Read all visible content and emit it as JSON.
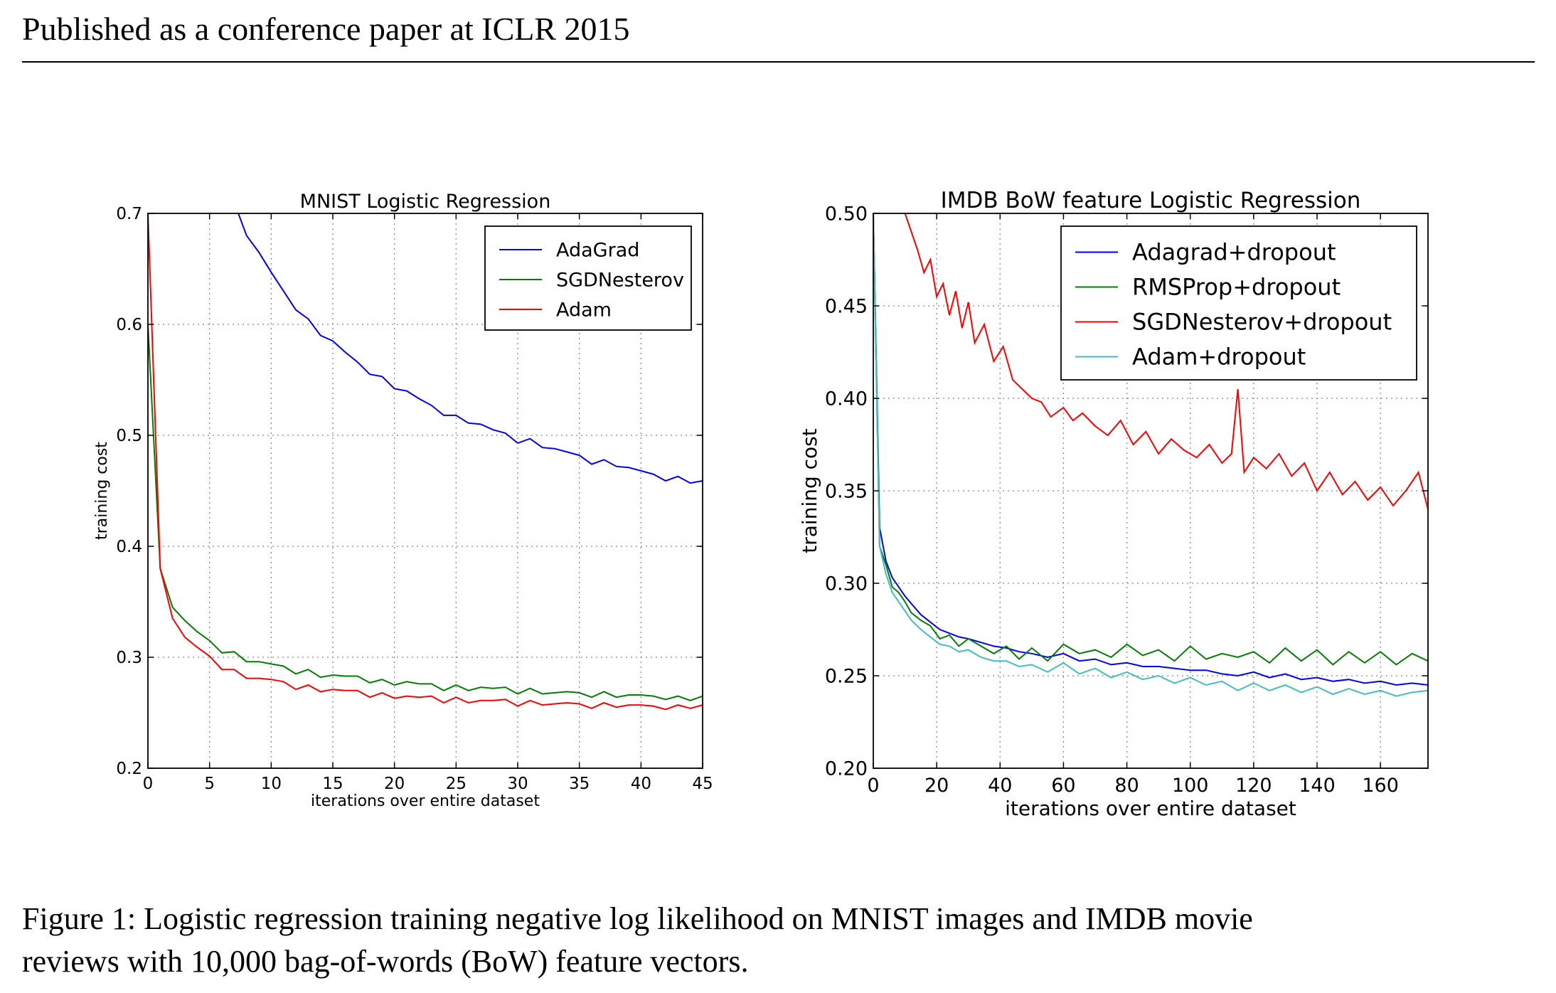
{
  "header": {
    "text": "Published as a conference paper at ICLR 2015"
  },
  "caption": {
    "line1": "Figure 1: Logistic regression training negative log likelihood on MNIST images and IMDB movie",
    "line2": "reviews with 10,000 bag-of-words (BoW) feature vectors."
  },
  "chart_data": [
    {
      "type": "line",
      "title": "MNIST Logistic Regression",
      "xlabel": "iterations over entire dataset",
      "ylabel": "training cost",
      "xlim": [
        0,
        45
      ],
      "ylim": [
        0.2,
        0.7
      ],
      "xticks": [
        0,
        5,
        10,
        15,
        20,
        25,
        30,
        35,
        40,
        45
      ],
      "yticks": [
        0.2,
        0.3,
        0.4,
        0.5,
        0.6,
        0.7
      ],
      "ytick_labels": [
        "0.2",
        "0.3",
        "0.4",
        "0.5",
        "0.6",
        "0.7"
      ],
      "grid": true,
      "legend": "top-right",
      "series": [
        {
          "name": "AdaGrad",
          "color": "#0000ff",
          "x": [
            7,
            8,
            9,
            10,
            11,
            12,
            13,
            14,
            15,
            16,
            17,
            18,
            19,
            20,
            21,
            22,
            23,
            24,
            25,
            26,
            27,
            28,
            29,
            30,
            31,
            32,
            33,
            34,
            35,
            36,
            37,
            38,
            39,
            40,
            41,
            42,
            43,
            44,
            45
          ],
          "y": [
            0.71,
            0.68,
            0.665,
            0.647,
            0.63,
            0.613,
            0.605,
            0.59,
            0.585,
            0.575,
            0.566,
            0.555,
            0.553,
            0.542,
            0.54,
            0.533,
            0.527,
            0.518,
            0.518,
            0.511,
            0.51,
            0.505,
            0.502,
            0.493,
            0.497,
            0.489,
            0.488,
            0.485,
            0.482,
            0.474,
            0.478,
            0.472,
            0.471,
            0.468,
            0.465,
            0.459,
            0.463,
            0.457,
            0.459
          ]
        },
        {
          "name": "SGDNesterov",
          "color": "#007f00",
          "x": [
            0,
            1,
            2,
            3,
            4,
            5,
            6,
            7,
            8,
            9,
            10,
            11,
            12,
            13,
            14,
            15,
            16,
            17,
            18,
            19,
            20,
            21,
            22,
            23,
            24,
            25,
            26,
            27,
            28,
            29,
            30,
            31,
            32,
            33,
            34,
            35,
            36,
            37,
            38,
            39,
            40,
            41,
            42,
            43,
            44,
            45
          ],
          "y": [
            0.6,
            0.38,
            0.345,
            0.333,
            0.323,
            0.315,
            0.304,
            0.305,
            0.296,
            0.296,
            0.294,
            0.292,
            0.285,
            0.289,
            0.282,
            0.284,
            0.283,
            0.283,
            0.277,
            0.28,
            0.275,
            0.278,
            0.276,
            0.276,
            0.27,
            0.275,
            0.27,
            0.273,
            0.272,
            0.273,
            0.267,
            0.272,
            0.267,
            0.268,
            0.269,
            0.268,
            0.264,
            0.269,
            0.264,
            0.266,
            0.266,
            0.265,
            0.262,
            0.265,
            0.261,
            0.265
          ]
        },
        {
          "name": "Adam",
          "color": "#ff0000",
          "x": [
            0,
            1,
            2,
            3,
            4,
            5,
            6,
            7,
            8,
            9,
            10,
            11,
            12,
            13,
            14,
            15,
            16,
            17,
            18,
            19,
            20,
            21,
            22,
            23,
            24,
            25,
            26,
            27,
            28,
            29,
            30,
            31,
            32,
            33,
            34,
            35,
            36,
            37,
            38,
            39,
            40,
            41,
            42,
            43,
            44,
            45
          ],
          "y": [
            0.7,
            0.38,
            0.335,
            0.318,
            0.309,
            0.301,
            0.289,
            0.289,
            0.281,
            0.281,
            0.28,
            0.278,
            0.271,
            0.275,
            0.269,
            0.271,
            0.27,
            0.27,
            0.264,
            0.268,
            0.263,
            0.265,
            0.264,
            0.265,
            0.259,
            0.264,
            0.259,
            0.261,
            0.261,
            0.262,
            0.256,
            0.261,
            0.257,
            0.258,
            0.259,
            0.258,
            0.254,
            0.259,
            0.255,
            0.257,
            0.257,
            0.256,
            0.253,
            0.257,
            0.254,
            0.257
          ]
        }
      ]
    },
    {
      "type": "line",
      "title": "IMDB BoW feature Logistic Regression",
      "xlabel": "iterations over entire dataset",
      "ylabel": "training cost",
      "xlim": [
        0,
        175
      ],
      "ylim": [
        0.2,
        0.5
      ],
      "xticks": [
        0,
        20,
        40,
        60,
        80,
        100,
        120,
        140,
        160
      ],
      "yticks": [
        0.2,
        0.25,
        0.3,
        0.35,
        0.4,
        0.45,
        0.5
      ],
      "ytick_labels": [
        "0.20",
        "0.25",
        "0.30",
        "0.35",
        "0.40",
        "0.45",
        "0.50"
      ],
      "grid": true,
      "legend": "top-right",
      "series": [
        {
          "name": "Adagrad+dropout",
          "color": "#0000ff",
          "x": [
            0,
            2,
            4,
            6,
            8,
            10,
            12,
            15,
            18,
            21,
            24,
            27,
            30,
            34,
            38,
            42,
            46,
            50,
            55,
            60,
            65,
            70,
            75,
            80,
            85,
            90,
            95,
            100,
            105,
            110,
            115,
            120,
            125,
            130,
            135,
            140,
            145,
            150,
            155,
            160,
            165,
            170,
            175
          ],
          "y": [
            0.5,
            0.33,
            0.312,
            0.303,
            0.298,
            0.293,
            0.289,
            0.283,
            0.279,
            0.275,
            0.273,
            0.271,
            0.27,
            0.268,
            0.266,
            0.265,
            0.263,
            0.262,
            0.26,
            0.262,
            0.258,
            0.259,
            0.256,
            0.257,
            0.255,
            0.255,
            0.254,
            0.253,
            0.253,
            0.251,
            0.25,
            0.252,
            0.249,
            0.251,
            0.248,
            0.249,
            0.247,
            0.248,
            0.246,
            0.247,
            0.245,
            0.246,
            0.245
          ]
        },
        {
          "name": "RMSProp+dropout",
          "color": "#007f00",
          "x": [
            0,
            2,
            4,
            6,
            8,
            10,
            12,
            15,
            18,
            21,
            24,
            27,
            30,
            34,
            38,
            42,
            46,
            50,
            55,
            60,
            65,
            70,
            75,
            80,
            85,
            90,
            95,
            100,
            105,
            110,
            115,
            120,
            125,
            130,
            135,
            140,
            145,
            150,
            155,
            160,
            165,
            170,
            175
          ],
          "y": [
            0.5,
            0.32,
            0.31,
            0.298,
            0.295,
            0.29,
            0.284,
            0.28,
            0.277,
            0.27,
            0.272,
            0.266,
            0.27,
            0.266,
            0.262,
            0.266,
            0.259,
            0.265,
            0.258,
            0.267,
            0.262,
            0.264,
            0.26,
            0.267,
            0.261,
            0.264,
            0.258,
            0.266,
            0.259,
            0.262,
            0.26,
            0.263,
            0.257,
            0.265,
            0.258,
            0.264,
            0.256,
            0.263,
            0.257,
            0.263,
            0.256,
            0.262,
            0.258
          ]
        },
        {
          "name": "SGDNesterov+dropout",
          "color": "#ff0000",
          "x": [
            10,
            12,
            14,
            16,
            18,
            20,
            22,
            24,
            26,
            28,
            30,
            32,
            35,
            38,
            41,
            44,
            47,
            50,
            53,
            56,
            60,
            63,
            66,
            70,
            74,
            78,
            82,
            86,
            90,
            94,
            98,
            102,
            106,
            110,
            113,
            115,
            117,
            120,
            124,
            128,
            132,
            136,
            140,
            144,
            148,
            152,
            156,
            160,
            164,
            168,
            172,
            175
          ],
          "y": [
            0.5,
            0.49,
            0.48,
            0.468,
            0.475,
            0.455,
            0.462,
            0.445,
            0.458,
            0.438,
            0.452,
            0.43,
            0.44,
            0.42,
            0.428,
            0.41,
            0.405,
            0.4,
            0.398,
            0.39,
            0.395,
            0.388,
            0.392,
            0.385,
            0.38,
            0.388,
            0.375,
            0.382,
            0.37,
            0.378,
            0.372,
            0.368,
            0.375,
            0.365,
            0.37,
            0.405,
            0.36,
            0.368,
            0.362,
            0.37,
            0.358,
            0.365,
            0.35,
            0.36,
            0.348,
            0.355,
            0.345,
            0.352,
            0.342,
            0.35,
            0.36,
            0.34
          ]
        },
        {
          "name": "Adam+dropout",
          "color": "#40bfbf",
          "x": [
            0,
            2,
            4,
            6,
            8,
            10,
            12,
            15,
            18,
            21,
            24,
            27,
            30,
            34,
            38,
            42,
            46,
            50,
            55,
            60,
            65,
            70,
            75,
            80,
            85,
            90,
            95,
            100,
            105,
            110,
            115,
            120,
            125,
            130,
            135,
            140,
            145,
            150,
            155,
            160,
            165,
            170,
            175
          ],
          "y": [
            0.5,
            0.32,
            0.305,
            0.295,
            0.29,
            0.285,
            0.28,
            0.275,
            0.271,
            0.267,
            0.266,
            0.263,
            0.264,
            0.26,
            0.258,
            0.258,
            0.255,
            0.256,
            0.252,
            0.257,
            0.251,
            0.254,
            0.249,
            0.252,
            0.248,
            0.25,
            0.246,
            0.249,
            0.245,
            0.247,
            0.242,
            0.246,
            0.242,
            0.245,
            0.241,
            0.244,
            0.24,
            0.243,
            0.24,
            0.242,
            0.239,
            0.241,
            0.242
          ]
        }
      ]
    }
  ]
}
